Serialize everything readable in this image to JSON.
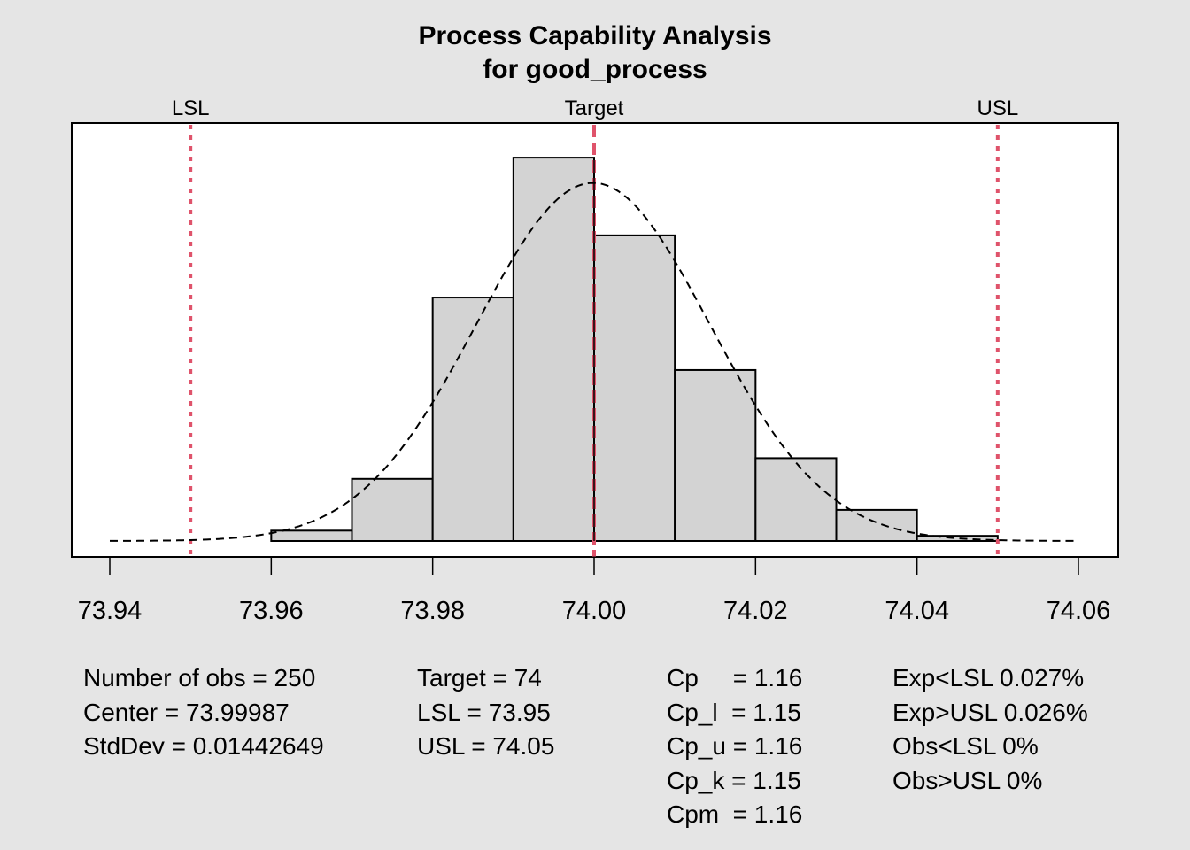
{
  "chart_data": {
    "type": "bar",
    "subtype": "histogram-with-normal-curve",
    "title": "Process Capability Analysis",
    "subtitle": "for good_process",
    "xlim": [
      73.94,
      74.06
    ],
    "x_ticks": [
      "73.94",
      "73.96",
      "73.98",
      "74.00",
      "74.02",
      "74.04",
      "74.06"
    ],
    "x_tick_values": [
      73.94,
      73.96,
      73.98,
      74.0,
      74.02,
      74.04,
      74.06
    ],
    "bin_width": 0.01,
    "bins": [
      {
        "from": 73.96,
        "to": 73.97,
        "count": 2
      },
      {
        "from": 73.97,
        "to": 73.98,
        "count": 12
      },
      {
        "from": 73.98,
        "to": 73.99,
        "count": 47
      },
      {
        "from": 73.99,
        "to": 74.0,
        "count": 74
      },
      {
        "from": 74.0,
        "to": 74.01,
        "count": 59
      },
      {
        "from": 74.01,
        "to": 74.02,
        "count": 33
      },
      {
        "from": 74.02,
        "to": 74.03,
        "count": 16
      },
      {
        "from": 74.03,
        "to": 74.04,
        "count": 6
      },
      {
        "from": 74.04,
        "to": 74.05,
        "count": 1
      }
    ],
    "ylim": [
      0,
      78
    ],
    "normal_curve": {
      "mean": 73.99987,
      "sd": 0.01442649,
      "n": 250,
      "range": [
        73.94,
        74.06
      ]
    },
    "spec_lines": [
      {
        "label": "LSL",
        "value": 73.95,
        "style": "dotted"
      },
      {
        "label": "Target",
        "value": 74.0,
        "style": "dashed"
      },
      {
        "label": "USL",
        "value": 74.05,
        "style": "dotted"
      }
    ],
    "grid": false,
    "colors": {
      "background": "#e5e5e5",
      "plot_bg": "#ffffff",
      "bar_fill": "#d3d3d3",
      "bar_stroke": "#000000",
      "spec_line": "#df536b",
      "curve": "#000000"
    }
  },
  "stats": {
    "col1": [
      "Number of obs = 250",
      "Center = 73.99987",
      "StdDev = 0.01442649"
    ],
    "col2": [
      "Target = 74",
      "LSL = 73.95",
      "USL = 74.05"
    ],
    "col3": [
      "Cp     = 1.16",
      "Cp_l  = 1.15",
      "Cp_u = 1.16",
      "Cp_k = 1.15",
      "Cpm  = 1.16"
    ],
    "col4": [
      "Exp<LSL 0.027%",
      "Exp>USL 0.026%",
      "Obs<LSL 0%",
      "Obs>USL 0%"
    ]
  }
}
